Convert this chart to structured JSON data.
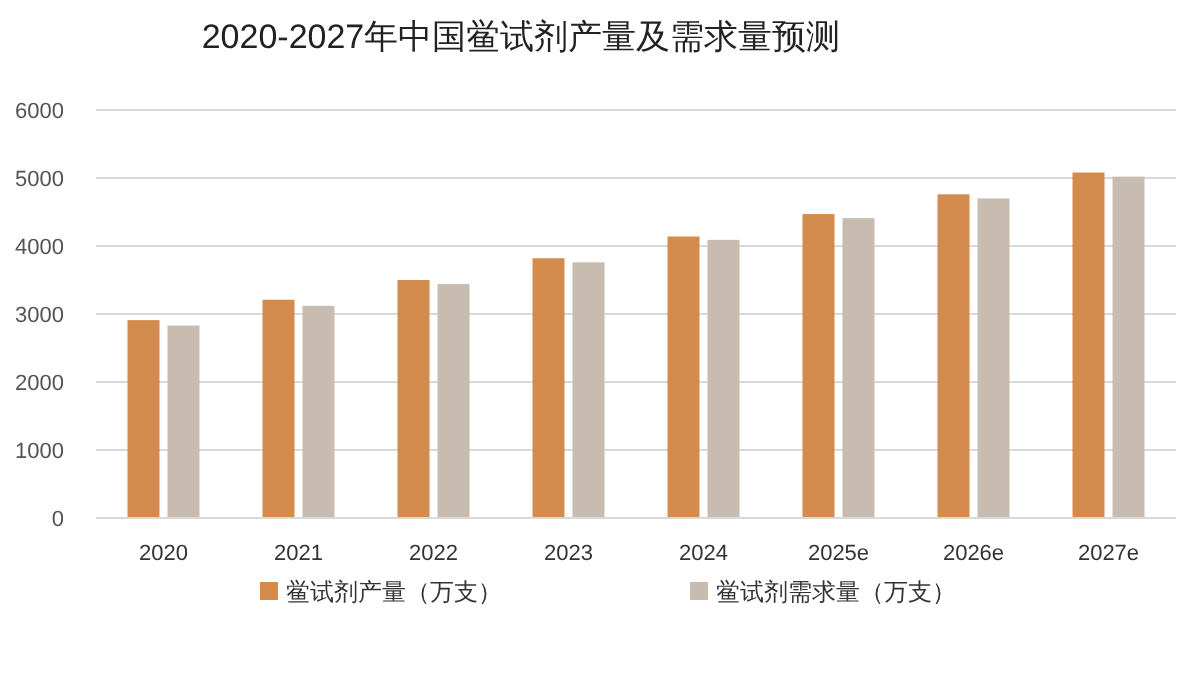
{
  "chart_data": {
    "type": "bar",
    "title": "2020-2027年中国鲎试剂产量及需求量预测",
    "categories": [
      "2020",
      "2021",
      "2022",
      "2023",
      "2024",
      "2025e",
      "2026e",
      "2027e"
    ],
    "series": [
      {
        "name": "鲎试剂产量（万支）",
        "color": "#d38b4e",
        "values": [
          2910,
          3210,
          3500,
          3820,
          4140,
          4470,
          4760,
          5080
        ]
      },
      {
        "name": "鲎试剂需求量（万支）",
        "color": "#c8bcb0",
        "values": [
          2830,
          3120,
          3440,
          3760,
          4090,
          4410,
          4700,
          5020
        ]
      }
    ],
    "ylim": [
      0,
      6000
    ],
    "yticks": [
      0,
      1000,
      2000,
      3000,
      4000,
      5000,
      6000
    ],
    "grid": "y",
    "legend": "bottom"
  }
}
